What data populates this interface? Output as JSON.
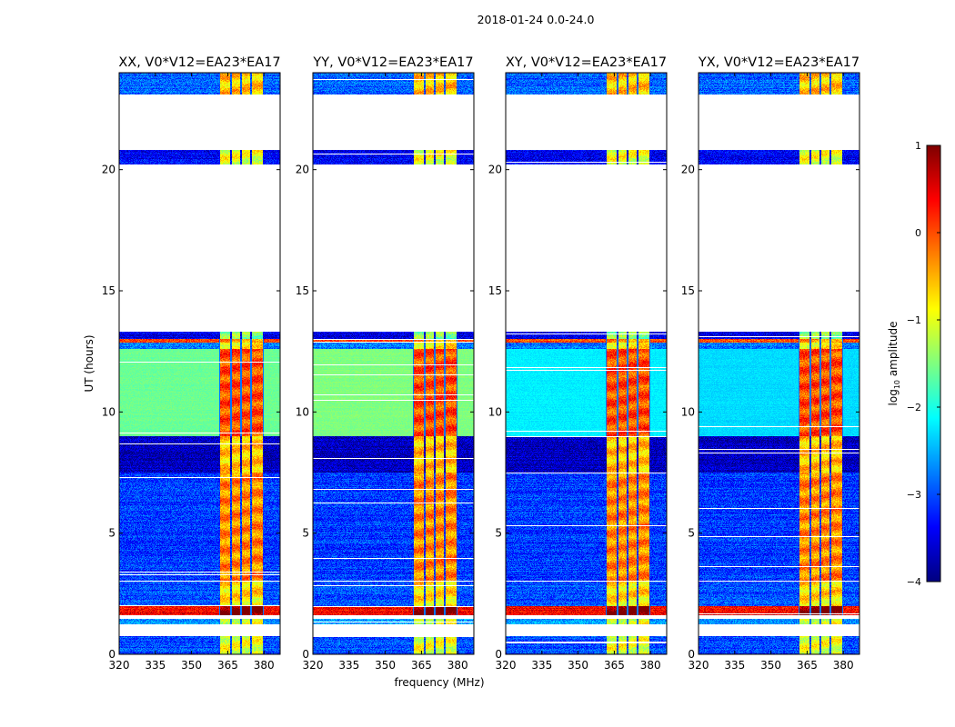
{
  "chart_data": {
    "type": "heatmap",
    "title": "2018-01-24 0.0-24.0",
    "xlabel": "frequency (MHz)",
    "ylabel": "UT (hours)",
    "xlim": [
      320,
      386.7
    ],
    "ylim": [
      0,
      24
    ],
    "xticks": [
      "320",
      "335",
      "350",
      "365",
      "380"
    ],
    "xtick_values": [
      320,
      335,
      350,
      365,
      380
    ],
    "yticks": [
      "0",
      "5",
      "10",
      "15",
      "20"
    ],
    "ytick_values": [
      0,
      5,
      10,
      15,
      20
    ],
    "colorbar": {
      "label_prefix": "log",
      "label_sub": "10",
      "label_suffix": " amplitude",
      "range": [
        -4,
        1
      ],
      "ticks": [
        "1",
        "0",
        "−1",
        "−2",
        "−3",
        "−4"
      ],
      "tick_values": [
        1,
        0,
        -1,
        -2,
        -3,
        -4
      ],
      "colormap": "jet"
    },
    "panels": [
      {
        "title": "XX, V0*V12=EA23*EA17",
        "mid_level": -1.6
      },
      {
        "title": "YY, V0*V12=EA23*EA17",
        "mid_level": -1.5
      },
      {
        "title": "XY, V0*V12=EA23*EA17",
        "mid_level": -2.2
      },
      {
        "title": "YX, V0*V12=EA23*EA17",
        "mid_level": -2.3
      }
    ],
    "rfi_bands_mhz": [
      [
        362,
        366
      ],
      [
        366.6,
        370.3
      ],
      [
        370.9,
        374.3
      ],
      [
        374.9,
        379.6
      ]
    ],
    "time_segments_hours": [
      {
        "t0": 0.0,
        "t1": 0.75,
        "base": -3.0,
        "rfi": -1.0
      },
      {
        "t0": 1.25,
        "t1": 1.45,
        "base": -2.6,
        "rfi": -1.0
      },
      {
        "t0": 1.6,
        "t1": 2.0,
        "base": 0.4,
        "rfi": 1.0
      },
      {
        "t0": 2.0,
        "t1": 2.35,
        "base": -3.0,
        "rfi": -0.8
      },
      {
        "t0": 2.35,
        "t1": 3.0,
        "base": -3.0,
        "rfi": -0.7
      },
      {
        "t0": 3.05,
        "t1": 7.5,
        "base": -3.1,
        "rfi": -0.3
      },
      {
        "t0": 7.5,
        "t1": 9.0,
        "base": -3.7,
        "rfi": -0.6
      },
      {
        "t0": 9.0,
        "t1": 12.6,
        "base": "mid",
        "rfi": 0.0
      },
      {
        "t0": 12.6,
        "t1": 12.85,
        "base": -2.8,
        "rfi": -0.8
      },
      {
        "t0": 12.85,
        "t1": 13.0,
        "base": 0.0,
        "rfi": -0.3
      },
      {
        "t0": 13.0,
        "t1": 13.3,
        "base": -3.5,
        "rfi": -1.5
      },
      {
        "t0": 20.2,
        "t1": 20.8,
        "base": -3.4,
        "rfi": -1.0
      },
      {
        "t0": 23.1,
        "t1": 24.0,
        "base": -2.9,
        "rfi": -0.6
      }
    ]
  }
}
